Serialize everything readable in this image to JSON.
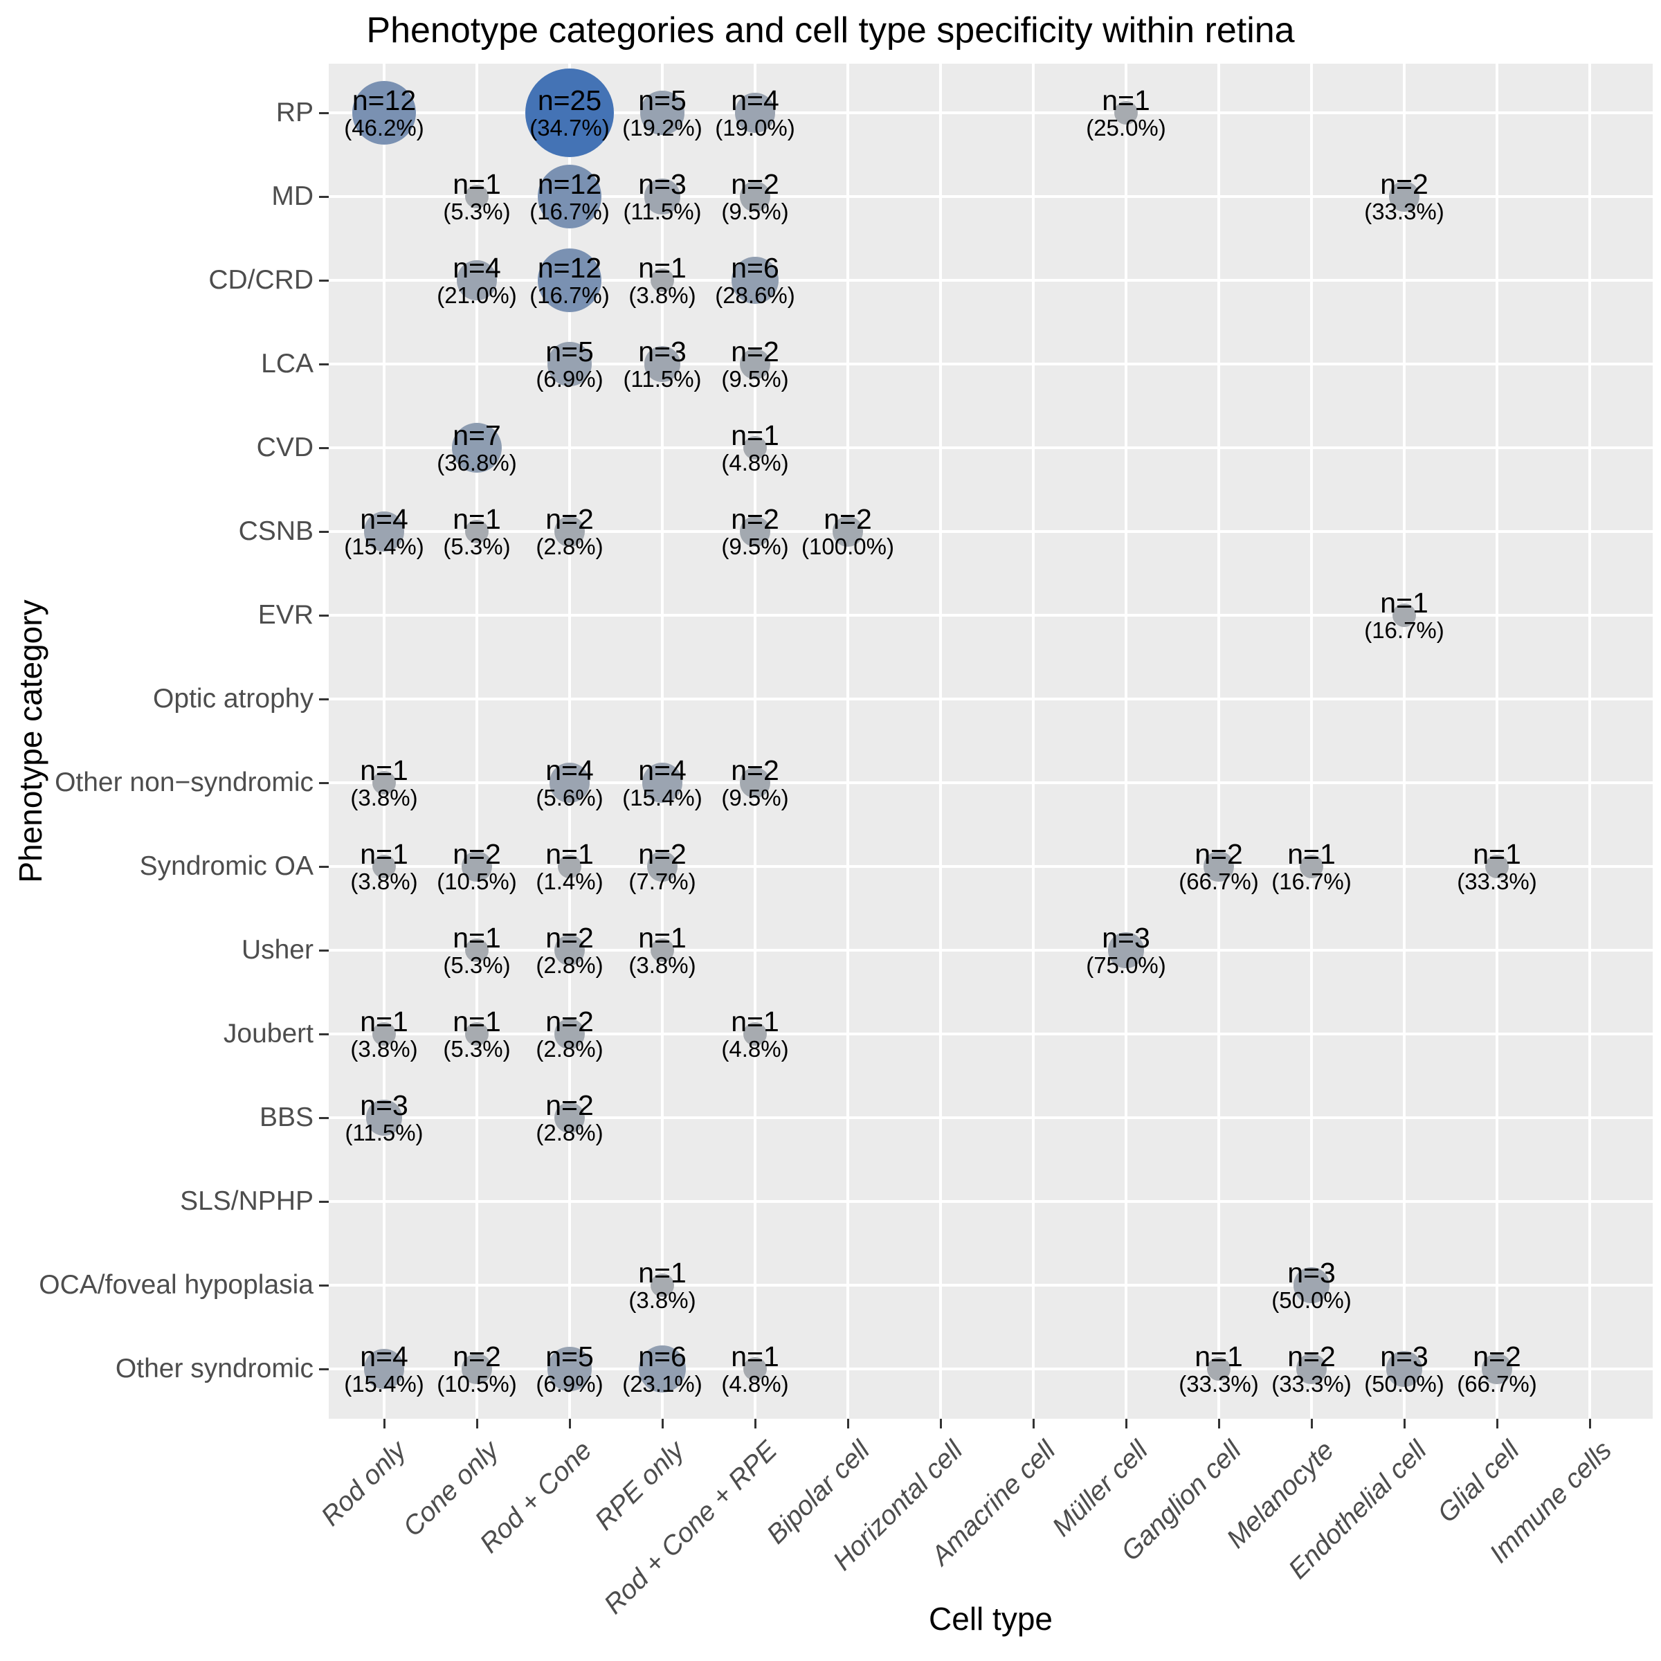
{
  "title": "Phenotype categories and cell type specificity within retina",
  "chart_data": {
    "type": "scatter",
    "subtype": "bubble",
    "title": "Phenotype categories and cell type specificity within retina",
    "xlabel": "Cell type",
    "ylabel": "Phenotype category",
    "legend_position": "none",
    "grid": "major-only",
    "panel_background": "#EBEBEB",
    "grid_color": "#FFFFFF",
    "axis_text_color": "#4D4D4D",
    "tick_color": "#333333",
    "point_label_color": "#000000",
    "bubble_color_low": "#A7ABB0",
    "bubble_color_high": "#4473B5",
    "n_min": 1,
    "n_max": 25,
    "x_categories": [
      "Rod only",
      "Cone only",
      "Rod + Cone",
      "RPE only",
      "Rod + Cone + RPE",
      "Bipolar cell",
      "Horizontal cell",
      "Amacrine cell",
      "Müller cell",
      "Ganglion cell",
      "Melanocyte",
      "Endothelial cell",
      "Glial cell",
      "Immune cells"
    ],
    "y_categories": [
      "RP",
      "MD",
      "CD/CRD",
      "LCA",
      "CVD",
      "CSNB",
      "EVR",
      "Optic atrophy",
      "Other non−syndromic",
      "Syndromic OA",
      "Usher",
      "Joubert",
      "BBS",
      "SLS/NPHP",
      "OCA/foveal hypoplasia",
      "Other syndromic"
    ],
    "points": [
      {
        "y": "RP",
        "x": "Rod only",
        "n": 12,
        "pct": 46.2,
        "label_n": "n=12",
        "label_pct": "(46.2%)"
      },
      {
        "y": "RP",
        "x": "Rod + Cone",
        "n": 25,
        "pct": 34.7,
        "label_n": "n=25",
        "label_pct": "(34.7%)"
      },
      {
        "y": "RP",
        "x": "RPE only",
        "n": 5,
        "pct": 19.2,
        "label_n": "n=5",
        "label_pct": "(19.2%)"
      },
      {
        "y": "RP",
        "x": "Rod + Cone + RPE",
        "n": 4,
        "pct": 19.0,
        "label_n": "n=4",
        "label_pct": "(19.0%)"
      },
      {
        "y": "RP",
        "x": "Müller cell",
        "n": 1,
        "pct": 25.0,
        "label_n": "n=1",
        "label_pct": "(25.0%)"
      },
      {
        "y": "MD",
        "x": "Cone only",
        "n": 1,
        "pct": 5.3,
        "label_n": "n=1",
        "label_pct": "(5.3%)"
      },
      {
        "y": "MD",
        "x": "Rod + Cone",
        "n": 12,
        "pct": 16.7,
        "label_n": "n=12",
        "label_pct": "(16.7%)"
      },
      {
        "y": "MD",
        "x": "RPE only",
        "n": 3,
        "pct": 11.5,
        "label_n": "n=3",
        "label_pct": "(11.5%)"
      },
      {
        "y": "MD",
        "x": "Rod + Cone + RPE",
        "n": 2,
        "pct": 9.5,
        "label_n": "n=2",
        "label_pct": "(9.5%)"
      },
      {
        "y": "MD",
        "x": "Endothelial cell",
        "n": 2,
        "pct": 33.3,
        "label_n": "n=2",
        "label_pct": "(33.3%)"
      },
      {
        "y": "CD/CRD",
        "x": "Cone only",
        "n": 4,
        "pct": 21.0,
        "label_n": "n=4",
        "label_pct": "(21.0%)"
      },
      {
        "y": "CD/CRD",
        "x": "Rod + Cone",
        "n": 12,
        "pct": 16.7,
        "label_n": "n=12",
        "label_pct": "(16.7%)"
      },
      {
        "y": "CD/CRD",
        "x": "RPE only",
        "n": 1,
        "pct": 3.8,
        "label_n": "n=1",
        "label_pct": "(3.8%)"
      },
      {
        "y": "CD/CRD",
        "x": "Rod + Cone + RPE",
        "n": 6,
        "pct": 28.6,
        "label_n": "n=6",
        "label_pct": "(28.6%)"
      },
      {
        "y": "LCA",
        "x": "Rod + Cone",
        "n": 5,
        "pct": 6.9,
        "label_n": "n=5",
        "label_pct": "(6.9%)"
      },
      {
        "y": "LCA",
        "x": "RPE only",
        "n": 3,
        "pct": 11.5,
        "label_n": "n=3",
        "label_pct": "(11.5%)"
      },
      {
        "y": "LCA",
        "x": "Rod + Cone + RPE",
        "n": 2,
        "pct": 9.5,
        "label_n": "n=2",
        "label_pct": "(9.5%)"
      },
      {
        "y": "CVD",
        "x": "Cone only",
        "n": 7,
        "pct": 36.8,
        "label_n": "n=7",
        "label_pct": "(36.8%)"
      },
      {
        "y": "CVD",
        "x": "Rod + Cone + RPE",
        "n": 1,
        "pct": 4.8,
        "label_n": "n=1",
        "label_pct": "(4.8%)"
      },
      {
        "y": "CSNB",
        "x": "Rod only",
        "n": 4,
        "pct": 15.4,
        "label_n": "n=4",
        "label_pct": "(15.4%)"
      },
      {
        "y": "CSNB",
        "x": "Cone only",
        "n": 1,
        "pct": 5.3,
        "label_n": "n=1",
        "label_pct": "(5.3%)"
      },
      {
        "y": "CSNB",
        "x": "Rod + Cone",
        "n": 2,
        "pct": 2.8,
        "label_n": "n=2",
        "label_pct": "(2.8%)"
      },
      {
        "y": "CSNB",
        "x": "Rod + Cone + RPE",
        "n": 2,
        "pct": 9.5,
        "label_n": "n=2",
        "label_pct": "(9.5%)"
      },
      {
        "y": "CSNB",
        "x": "Bipolar cell",
        "n": 2,
        "pct": 100.0,
        "label_n": "n=2",
        "label_pct": "(100.0%)"
      },
      {
        "y": "EVR",
        "x": "Endothelial cell",
        "n": 1,
        "pct": 16.7,
        "label_n": "n=1",
        "label_pct": "(16.7%)"
      },
      {
        "y": "Other non−syndromic",
        "x": "Rod only",
        "n": 1,
        "pct": 3.8,
        "label_n": "n=1",
        "label_pct": "(3.8%)"
      },
      {
        "y": "Other non−syndromic",
        "x": "Rod + Cone",
        "n": 4,
        "pct": 5.6,
        "label_n": "n=4",
        "label_pct": "(5.6%)"
      },
      {
        "y": "Other non−syndromic",
        "x": "RPE only",
        "n": 4,
        "pct": 15.4,
        "label_n": "n=4",
        "label_pct": "(15.4%)"
      },
      {
        "y": "Other non−syndromic",
        "x": "Rod + Cone + RPE",
        "n": 2,
        "pct": 9.5,
        "label_n": "n=2",
        "label_pct": "(9.5%)"
      },
      {
        "y": "Syndromic OA",
        "x": "Rod only",
        "n": 1,
        "pct": 3.8,
        "label_n": "n=1",
        "label_pct": "(3.8%)"
      },
      {
        "y": "Syndromic OA",
        "x": "Cone only",
        "n": 2,
        "pct": 10.5,
        "label_n": "n=2",
        "label_pct": "(10.5%)"
      },
      {
        "y": "Syndromic OA",
        "x": "Rod + Cone",
        "n": 1,
        "pct": 1.4,
        "label_n": "n=1",
        "label_pct": "(1.4%)"
      },
      {
        "y": "Syndromic OA",
        "x": "RPE only",
        "n": 2,
        "pct": 7.7,
        "label_n": "n=2",
        "label_pct": "(7.7%)"
      },
      {
        "y": "Syndromic OA",
        "x": "Ganglion cell",
        "n": 2,
        "pct": 66.7,
        "label_n": "n=2",
        "label_pct": "(66.7%)"
      },
      {
        "y": "Syndromic OA",
        "x": "Melanocyte",
        "n": 1,
        "pct": 16.7,
        "label_n": "n=1",
        "label_pct": "(16.7%)"
      },
      {
        "y": "Syndromic OA",
        "x": "Glial cell",
        "n": 1,
        "pct": 33.3,
        "label_n": "n=1",
        "label_pct": "(33.3%)"
      },
      {
        "y": "Usher",
        "x": "Cone only",
        "n": 1,
        "pct": 5.3,
        "label_n": "n=1",
        "label_pct": "(5.3%)"
      },
      {
        "y": "Usher",
        "x": "Rod + Cone",
        "n": 2,
        "pct": 2.8,
        "label_n": "n=2",
        "label_pct": "(2.8%)"
      },
      {
        "y": "Usher",
        "x": "RPE only",
        "n": 1,
        "pct": 3.8,
        "label_n": "n=1",
        "label_pct": "(3.8%)"
      },
      {
        "y": "Usher",
        "x": "Müller cell",
        "n": 3,
        "pct": 75.0,
        "label_n": "n=3",
        "label_pct": "(75.0%)"
      },
      {
        "y": "Joubert",
        "x": "Rod only",
        "n": 1,
        "pct": 3.8,
        "label_n": "n=1",
        "label_pct": "(3.8%)"
      },
      {
        "y": "Joubert",
        "x": "Cone only",
        "n": 1,
        "pct": 5.3,
        "label_n": "n=1",
        "label_pct": "(5.3%)"
      },
      {
        "y": "Joubert",
        "x": "Rod + Cone",
        "n": 2,
        "pct": 2.8,
        "label_n": "n=2",
        "label_pct": "(2.8%)"
      },
      {
        "y": "Joubert",
        "x": "Rod + Cone + RPE",
        "n": 1,
        "pct": 4.8,
        "label_n": "n=1",
        "label_pct": "(4.8%)"
      },
      {
        "y": "BBS",
        "x": "Rod only",
        "n": 3,
        "pct": 11.5,
        "label_n": "n=3",
        "label_pct": "(11.5%)"
      },
      {
        "y": "BBS",
        "x": "Rod + Cone",
        "n": 2,
        "pct": 2.8,
        "label_n": "n=2",
        "label_pct": "(2.8%)"
      },
      {
        "y": "OCA/foveal hypoplasia",
        "x": "RPE only",
        "n": 1,
        "pct": 3.8,
        "label_n": "n=1",
        "label_pct": "(3.8%)"
      },
      {
        "y": "OCA/foveal hypoplasia",
        "x": "Melanocyte",
        "n": 3,
        "pct": 50.0,
        "label_n": "n=3",
        "label_pct": "(50.0%)"
      },
      {
        "y": "Other syndromic",
        "x": "Rod only",
        "n": 4,
        "pct": 15.4,
        "label_n": "n=4",
        "label_pct": "(15.4%)"
      },
      {
        "y": "Other syndromic",
        "x": "Cone only",
        "n": 2,
        "pct": 10.5,
        "label_n": "n=2",
        "label_pct": "(10.5%)"
      },
      {
        "y": "Other syndromic",
        "x": "Rod + Cone",
        "n": 5,
        "pct": 6.9,
        "label_n": "n=5",
        "label_pct": "(6.9%)"
      },
      {
        "y": "Other syndromic",
        "x": "RPE only",
        "n": 6,
        "pct": 23.1,
        "label_n": "n=6",
        "label_pct": "(23.1%)"
      },
      {
        "y": "Other syndromic",
        "x": "Rod + Cone + RPE",
        "n": 1,
        "pct": 4.8,
        "label_n": "n=1",
        "label_pct": "(4.8%)"
      },
      {
        "y": "Other syndromic",
        "x": "Ganglion cell",
        "n": 1,
        "pct": 33.3,
        "label_n": "n=1",
        "label_pct": "(33.3%)"
      },
      {
        "y": "Other syndromic",
        "x": "Melanocyte",
        "n": 2,
        "pct": 33.3,
        "label_n": "n=2",
        "label_pct": "(33.3%)"
      },
      {
        "y": "Other syndromic",
        "x": "Endothelial cell",
        "n": 3,
        "pct": 50.0,
        "label_n": "n=3",
        "label_pct": "(50.0%)"
      },
      {
        "y": "Other syndromic",
        "x": "Glial cell",
        "n": 2,
        "pct": 66.7,
        "label_n": "n=2",
        "label_pct": "(66.7%)"
      }
    ]
  }
}
